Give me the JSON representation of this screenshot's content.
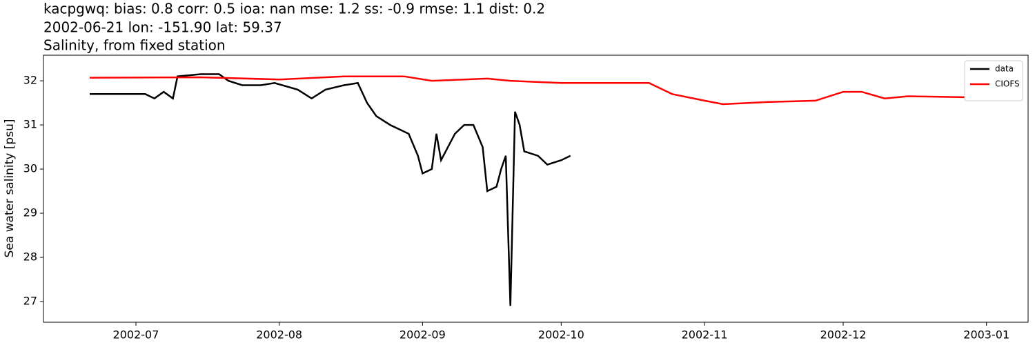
{
  "chart_data": {
    "type": "line",
    "title": [
      "kacpgwq: bias: 0.8  corr: 0.5  ioa: nan  mse: 1.2  ss: -0.9  rmse: 1.1  dist: 0.2",
      "2002-06-21 lon: -151.90 lat: 59.37",
      "Salinity, from fixed station"
    ],
    "ylabel": "Sea water salinity [psu]",
    "xlim": [
      "2002-06-11",
      "2003-01-10"
    ],
    "xticks": [
      {
        "value": "2002-07-01",
        "label": "2002-07"
      },
      {
        "value": "2002-08-01",
        "label": "2002-08"
      },
      {
        "value": "2002-09-01",
        "label": "2002-09"
      },
      {
        "value": "2002-10-01",
        "label": "2002-10"
      },
      {
        "value": "2002-11-01",
        "label": "2002-11"
      },
      {
        "value": "2002-12-01",
        "label": "2002-12"
      },
      {
        "value": "2003-01-01",
        "label": "2003-01"
      }
    ],
    "ylim": [
      26.53,
      32.58
    ],
    "yticks": [
      27,
      28,
      29,
      30,
      31,
      32
    ],
    "legend": "upper right",
    "series": [
      {
        "name": "data",
        "color": "#000000",
        "x": [
          "2002-06-21",
          "2002-07-03",
          "2002-07-05",
          "2002-07-07",
          "2002-07-09",
          "2002-07-10",
          "2002-07-15",
          "2002-07-19",
          "2002-07-21",
          "2002-07-24",
          "2002-07-28",
          "2002-07-31",
          "2002-08-05",
          "2002-08-08",
          "2002-08-11",
          "2002-08-15",
          "2002-08-18",
          "2002-08-20",
          "2002-08-22",
          "2002-08-25",
          "2002-08-27",
          "2002-08-29",
          "2002-08-31",
          "2002-09-01",
          "2002-09-03",
          "2002-09-04",
          "2002-09-05",
          "2002-09-06",
          "2002-09-08",
          "2002-09-10",
          "2002-09-12",
          "2002-09-14",
          "2002-09-15",
          "2002-09-17",
          "2002-09-18",
          "2002-09-19",
          "2002-09-20",
          "2002-09-21",
          "2002-09-22",
          "2002-09-23",
          "2002-09-26",
          "2002-09-28",
          "2002-10-01",
          "2002-10-03"
        ],
        "values": [
          31.7,
          31.7,
          31.6,
          31.75,
          31.6,
          32.1,
          32.15,
          32.15,
          32.0,
          31.9,
          31.9,
          31.95,
          31.8,
          31.6,
          31.8,
          31.9,
          31.95,
          31.5,
          31.2,
          31.0,
          30.9,
          30.8,
          30.3,
          29.9,
          30.0,
          30.8,
          30.2,
          30.4,
          30.8,
          31.0,
          31.0,
          30.5,
          29.5,
          29.6,
          30.0,
          30.3,
          26.9,
          31.3,
          31.0,
          30.4,
          30.3,
          30.1,
          30.2,
          30.3
        ]
      },
      {
        "name": "CIOFS",
        "color": "#ff0000",
        "x": [
          "2002-06-21",
          "2002-07-15",
          "2002-08-01",
          "2002-08-15",
          "2002-08-28",
          "2002-09-03",
          "2002-09-15",
          "2002-09-20",
          "2002-10-01",
          "2002-10-10",
          "2002-10-20",
          "2002-10-25",
          "2002-11-01",
          "2002-11-05",
          "2002-11-15",
          "2002-11-25",
          "2002-12-01",
          "2002-12-05",
          "2002-12-10",
          "2002-12-15",
          "2003-01-01"
        ],
        "values": [
          32.07,
          32.08,
          32.03,
          32.1,
          32.1,
          32.0,
          32.05,
          32.0,
          31.95,
          31.95,
          31.95,
          31.7,
          31.55,
          31.47,
          31.52,
          31.55,
          31.75,
          31.75,
          31.6,
          31.65,
          31.62
        ]
      }
    ]
  }
}
